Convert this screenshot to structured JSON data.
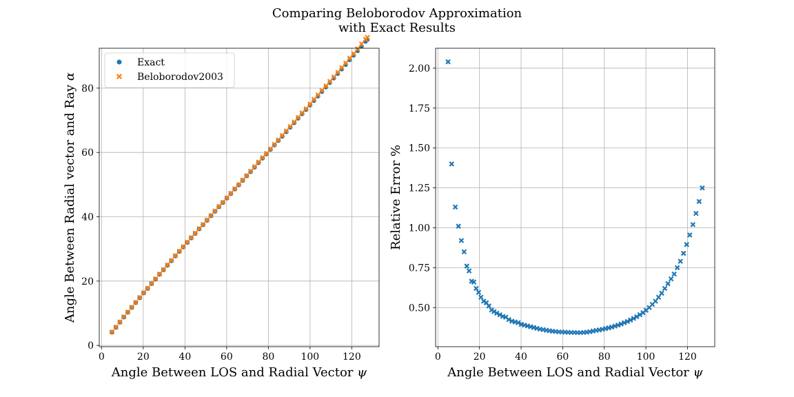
{
  "figure": {
    "title_line1": "Comparing Beloborodov Approximation",
    "title_line2": "with Exact Results"
  },
  "colors": {
    "blue": "#1f77b4",
    "orange": "#ff7f0e",
    "grid": "#b0b0b0"
  },
  "chart_data": [
    {
      "type": "scatter",
      "xlabel": "Angle Between LOS and Radial Vector ψ",
      "ylabel": "Angle Between Radial vector and Ray α",
      "xlim": [
        -1.1,
        133.1
      ],
      "ylim": [
        -0.4,
        92.4
      ],
      "xticks": [
        0,
        20,
        40,
        60,
        80,
        100,
        120
      ],
      "yticks": [
        0,
        20,
        40,
        60,
        80
      ],
      "grid": true,
      "legend": "top-left",
      "x": [
        5,
        6.9,
        8.8,
        10.7,
        12.6,
        14.5,
        16.4,
        18.3,
        20.2,
        22.1,
        24,
        25.9,
        27.8,
        29.7,
        31.6,
        33.5,
        35.4,
        37.3,
        39.2,
        41.1,
        43,
        44.9,
        46.8,
        48.7,
        50.6,
        52.5,
        54.4,
        56.3,
        58.2,
        60.1,
        62,
        63.9,
        65.8,
        67.7,
        69.6,
        71.5,
        73.4,
        75.3,
        77.2,
        79.1,
        81,
        82.9,
        84.8,
        86.7,
        88.6,
        90.5,
        92.4,
        94.3,
        96.2,
        98.1,
        100,
        101.9,
        103.8,
        105.7,
        107.6,
        109.5,
        111.4,
        113.3,
        115.2,
        117.1,
        119,
        120.9,
        122.8,
        124.7,
        126.6,
        127.5
      ],
      "series": [
        {
          "name": "Exact",
          "marker": "circle",
          "color": "#1f77b4",
          "values": [
            4.1,
            5.6,
            7.2,
            8.8,
            10.3,
            11.8,
            13.3,
            14.8,
            16.3,
            17.7,
            19.2,
            20.6,
            22.1,
            23.5,
            24.9,
            26.3,
            27.8,
            29.2,
            30.6,
            32,
            33.4,
            34.8,
            36.2,
            37.5,
            38.9,
            40.3,
            41.7,
            43.1,
            44.4,
            45.8,
            47.2,
            48.6,
            49.9,
            51.3,
            52.7,
            54,
            55.4,
            56.8,
            58.2,
            59.5,
            60.9,
            62.3,
            63.7,
            65,
            66.4,
            67.8,
            69.2,
            70.6,
            72,
            73.3,
            74.7,
            76.1,
            77.5,
            78.9,
            80.3,
            81.7,
            83.1,
            84.5,
            85.9,
            87.3,
            88.8,
            90.2,
            91.6,
            93,
            94.5,
            95.1
          ]
        },
        {
          "name": "Beloborodov2003",
          "marker": "x",
          "color": "#ff7f0e",
          "values": [
            4.2,
            5.7,
            7.3,
            8.9,
            10.4,
            11.9,
            13.4,
            14.9,
            16.4,
            17.8,
            19.3,
            20.7,
            22.2,
            23.6,
            25,
            26.4,
            27.9,
            29.3,
            30.7,
            32.1,
            33.5,
            34.9,
            36.3,
            37.6,
            39,
            40.4,
            41.8,
            43.2,
            44.5,
            45.9,
            47.3,
            48.7,
            50,
            51.4,
            52.8,
            54.2,
            55.6,
            57,
            58.4,
            59.7,
            61.1,
            62.5,
            63.9,
            65.3,
            66.7,
            68.1,
            69.5,
            70.9,
            72.3,
            73.6,
            75,
            76.5,
            77.9,
            79.3,
            80.7,
            82.1,
            83.5,
            84.9,
            86.4,
            87.8,
            89.3,
            90.7,
            92.2,
            93.7,
            95.2,
            95.8
          ]
        }
      ]
    },
    {
      "type": "scatter",
      "xlabel": "Angle Between LOS and Radial Vector ψ",
      "ylabel": "Relative Error %",
      "xlim": [
        -1.1,
        133.1
      ],
      "ylim": [
        0.255,
        2.125
      ],
      "xticks": [
        0,
        20,
        40,
        60,
        80,
        100,
        120
      ],
      "yticks": [
        0.5,
        0.75,
        1.0,
        1.25,
        1.5,
        1.75,
        2.0
      ],
      "ytick_labels": [
        "0.50",
        "0.75",
        "1.00",
        "1.25",
        "1.50",
        "1.75",
        "2.00"
      ],
      "grid": true,
      "series": [
        {
          "name": "",
          "marker": "x",
          "color": "#1f77b4",
          "x": [
            4.9,
            6.6,
            8.4,
            9.9,
            11.3,
            12.6,
            13.9,
            15.0,
            16.2,
            17.3,
            18.4,
            19.6,
            20.7,
            22.0,
            23.3,
            24.5,
            25.8,
            27.0,
            28.3,
            29.8,
            31.2,
            32.6,
            34.1,
            35.6,
            37.1,
            38.6,
            40.1,
            41.6,
            43.1,
            44.6,
            46.1,
            47.6,
            49.1,
            50.6,
            52.1,
            53.6,
            55.1,
            56.6,
            58.1,
            59.6,
            61.1,
            62.6,
            64.1,
            65.6,
            67.1,
            68.6,
            70.1,
            71.6,
            73.1,
            74.6,
            76.1,
            77.6,
            79.1,
            80.6,
            82.1,
            83.6,
            85.1,
            86.6,
            88.1,
            89.6,
            91.1,
            92.6,
            94.1,
            95.6,
            97.1,
            98.6,
            100.1,
            101.6,
            103.1,
            104.6,
            106.1,
            107.6,
            109.1,
            110.6,
            112.1,
            113.6,
            115.1,
            116.6,
            118.1,
            119.6,
            121.1,
            122.6,
            124.1,
            125.6,
            127.1
          ],
          "values": [
            2.04,
            1.4,
            1.13,
            1.01,
            0.92,
            0.85,
            0.76,
            0.73,
            0.665,
            0.66,
            0.62,
            0.595,
            0.565,
            0.54,
            0.53,
            0.51,
            0.485,
            0.475,
            0.465,
            0.455,
            0.445,
            0.44,
            0.425,
            0.415,
            0.41,
            0.405,
            0.395,
            0.39,
            0.385,
            0.38,
            0.375,
            0.37,
            0.365,
            0.362,
            0.358,
            0.355,
            0.352,
            0.35,
            0.348,
            0.347,
            0.346,
            0.345,
            0.344,
            0.344,
            0.343,
            0.343,
            0.344,
            0.346,
            0.349,
            0.353,
            0.357,
            0.36,
            0.364,
            0.368,
            0.373,
            0.378,
            0.384,
            0.39,
            0.397,
            0.405,
            0.413,
            0.422,
            0.432,
            0.443,
            0.455,
            0.468,
            0.483,
            0.5,
            0.52,
            0.54,
            0.565,
            0.59,
            0.62,
            0.65,
            0.68,
            0.71,
            0.75,
            0.79,
            0.84,
            0.895,
            0.955,
            1.02,
            1.09,
            1.165,
            1.25
          ]
        }
      ]
    }
  ]
}
